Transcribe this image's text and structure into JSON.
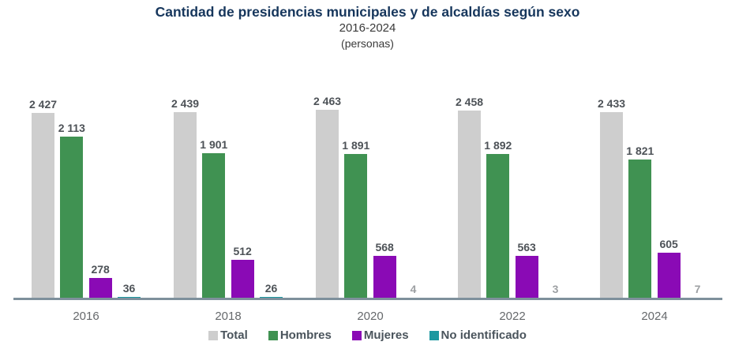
{
  "header": {
    "title": "Cantidad de presidencias municipales y de alcaldías según sexo",
    "subtitle": "2016-2024",
    "unit": "(personas)"
  },
  "chart_data": {
    "type": "bar",
    "title": "Cantidad de presidencias municipales y de alcaldías según sexo",
    "subtitle": "2016-2024",
    "unit_label": "(personas)",
    "categories": [
      "2016",
      "2018",
      "2020",
      "2022",
      "2024"
    ],
    "series": [
      {
        "name": "Total",
        "color": "#cecece",
        "values": [
          2427,
          2439,
          2463,
          2458,
          2433
        ]
      },
      {
        "name": "Hombres",
        "color": "#409252",
        "values": [
          2113,
          1901,
          1891,
          1892,
          1821
        ]
      },
      {
        "name": "Mujeres",
        "color": "#8a0ab5",
        "values": [
          278,
          512,
          568,
          563,
          605
        ]
      },
      {
        "name": "No identificado",
        "color": "#1d98a0",
        "values": [
          36,
          26,
          4,
          3,
          7
        ]
      }
    ],
    "ylim": [
      0,
      2470
    ],
    "grid": false,
    "axis_color": "#7e909c",
    "value_label_color": "#4d5257",
    "legend_position": "bottom",
    "value_labels": true,
    "number_format": "thousands separated by space"
  }
}
